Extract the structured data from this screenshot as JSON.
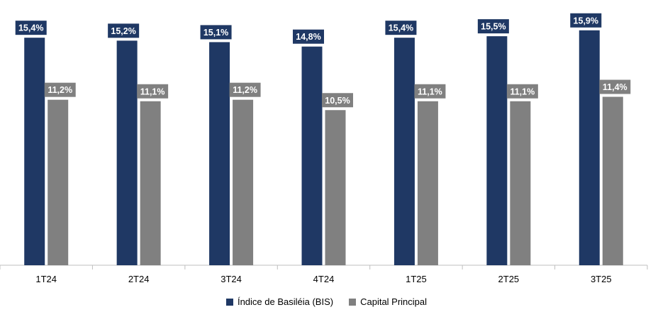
{
  "chart_data": {
    "type": "bar",
    "categories": [
      "1T24",
      "2T24",
      "3T24",
      "4T24",
      "1T25",
      "2T25",
      "3T25"
    ],
    "series": [
      {
        "name": "Índice de Basiléia (BIS)",
        "color": "#1f3864",
        "values": [
          15.4,
          15.2,
          15.1,
          14.8,
          15.4,
          15.5,
          15.9
        ],
        "labels": [
          "15,4%",
          "15,2%",
          "15,1%",
          "14,8%",
          "15,4%",
          "15,5%",
          "15,9%"
        ]
      },
      {
        "name": "Capital Principal",
        "color": "#808080",
        "values": [
          11.2,
          11.1,
          11.2,
          10.5,
          11.1,
          11.1,
          11.4
        ],
        "labels": [
          "11,2%",
          "11,1%",
          "11,2%",
          "10,5%",
          "11,1%",
          "11,1%",
          "11,4%"
        ]
      }
    ],
    "ylim": [
      0,
      16.8
    ],
    "grid": false,
    "legend_position": "bottom",
    "axis_color": "#bfbfbf"
  }
}
